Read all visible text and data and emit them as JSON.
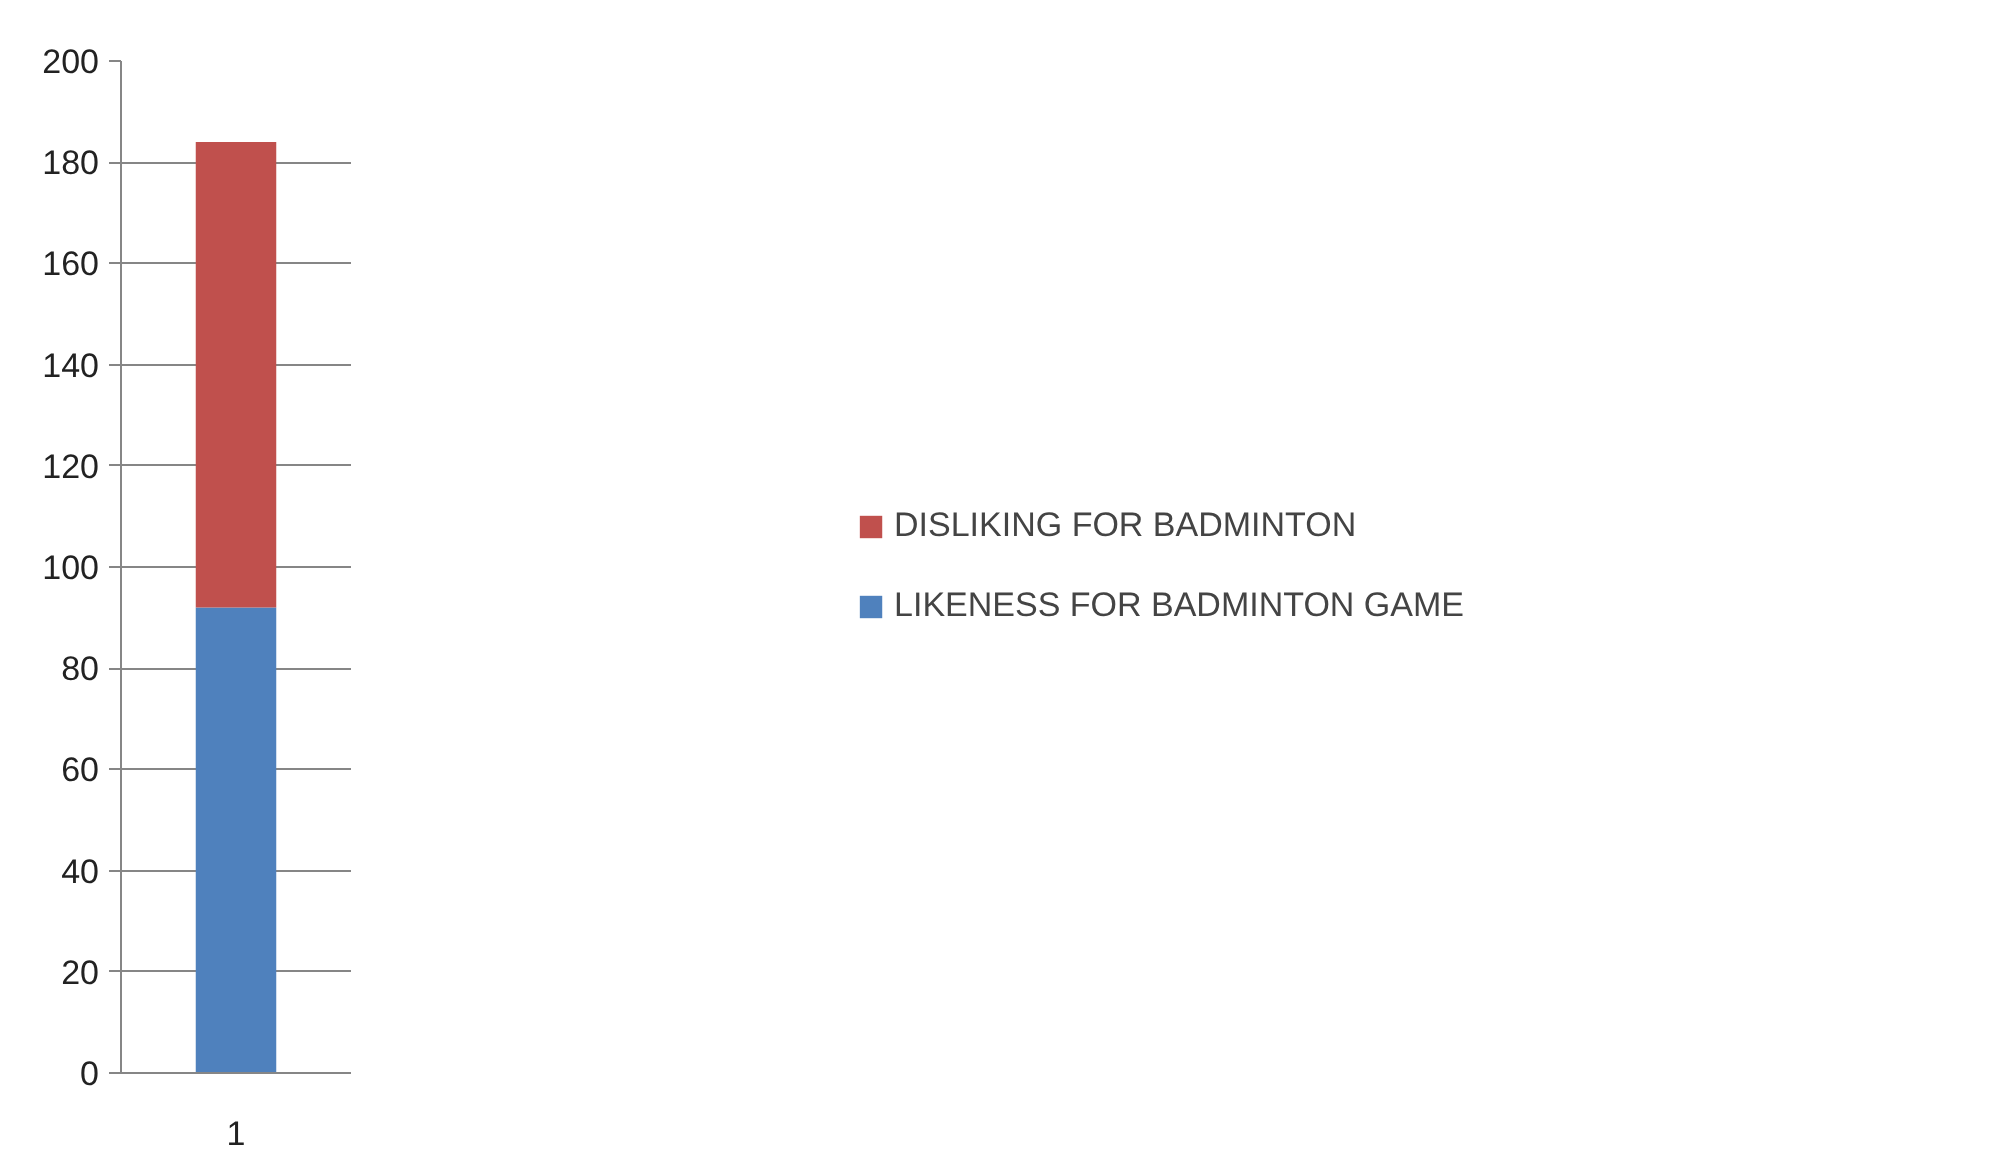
{
  "chart_data": {
    "type": "bar",
    "stacked": true,
    "categories": [
      "1"
    ],
    "series": [
      {
        "name": "LIKENESS FOR BADMINTON GAME",
        "color": "#4f81bd",
        "values": [
          92
        ]
      },
      {
        "name": "DISLIKING FOR BADMINTON",
        "color": "#c0504d",
        "values": [
          92
        ]
      }
    ],
    "ylim": [
      0,
      200
    ],
    "yticks": [
      0,
      20,
      40,
      60,
      80,
      100,
      120,
      140,
      160,
      180,
      200
    ],
    "grid": "y",
    "legend": "right"
  }
}
